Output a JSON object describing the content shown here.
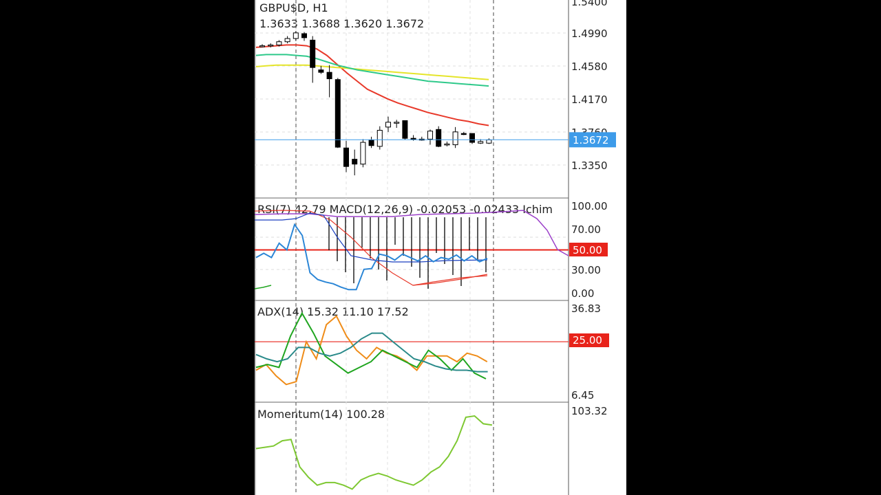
{
  "main": {
    "symbol": "GBPU$D, H1",
    "ohlc": "1.3633 1.3688 1.3620 1.3672",
    "price_axis": [
      "1.5400",
      "1.4990",
      "1.4580",
      "1.4170",
      "1.3760",
      "1.3350"
    ],
    "current_price": "1.3672",
    "current_price_color": "#3d9be9",
    "candles": [
      {
        "o": 1.484,
        "h": 1.486,
        "l": 1.482,
        "c": 1.484
      },
      {
        "o": 1.484,
        "h": 1.487,
        "l": 1.482,
        "c": 1.485
      },
      {
        "o": 1.485,
        "h": 1.491,
        "l": 1.483,
        "c": 1.489
      },
      {
        "o": 1.489,
        "h": 1.496,
        "l": 1.487,
        "c": 1.493
      },
      {
        "o": 1.493,
        "h": 1.502,
        "l": 1.49,
        "c": 1.5
      },
      {
        "o": 1.499,
        "h": 1.501,
        "l": 1.49,
        "c": 1.494
      },
      {
        "o": 1.491,
        "h": 1.496,
        "l": 1.438,
        "c": 1.457
      },
      {
        "o": 1.454,
        "h": 1.459,
        "l": 1.449,
        "c": 1.451
      },
      {
        "o": 1.451,
        "h": 1.46,
        "l": 1.42,
        "c": 1.443
      },
      {
        "o": 1.442,
        "h": 1.444,
        "l": 1.357,
        "c": 1.358
      },
      {
        "o": 1.357,
        "h": 1.366,
        "l": 1.327,
        "c": 1.334
      },
      {
        "o": 1.343,
        "h": 1.355,
        "l": 1.323,
        "c": 1.337
      },
      {
        "o": 1.337,
        "h": 1.368,
        "l": 1.333,
        "c": 1.364
      },
      {
        "o": 1.367,
        "h": 1.371,
        "l": 1.357,
        "c": 1.36
      },
      {
        "o": 1.359,
        "h": 1.384,
        "l": 1.355,
        "c": 1.379
      },
      {
        "o": 1.383,
        "h": 1.396,
        "l": 1.377,
        "c": 1.389
      },
      {
        "o": 1.389,
        "h": 1.392,
        "l": 1.382,
        "c": 1.389
      },
      {
        "o": 1.391,
        "h": 1.391,
        "l": 1.367,
        "c": 1.369
      },
      {
        "o": 1.369,
        "h": 1.373,
        "l": 1.366,
        "c": 1.368
      },
      {
        "o": 1.368,
        "h": 1.371,
        "l": 1.366,
        "c": 1.367
      },
      {
        "o": 1.368,
        "h": 1.38,
        "l": 1.361,
        "c": 1.378
      },
      {
        "o": 1.38,
        "h": 1.384,
        "l": 1.358,
        "c": 1.359
      },
      {
        "o": 1.361,
        "h": 1.365,
        "l": 1.359,
        "c": 1.362
      },
      {
        "o": 1.361,
        "h": 1.383,
        "l": 1.357,
        "c": 1.377
      },
      {
        "o": 1.375,
        "h": 1.377,
        "l": 1.373,
        "c": 1.374
      },
      {
        "o": 1.375,
        "h": 1.375,
        "l": 1.362,
        "c": 1.364
      },
      {
        "o": 1.363,
        "h": 1.368,
        "l": 1.362,
        "c": 1.365
      },
      {
        "o": 1.363,
        "h": 1.369,
        "l": 1.362,
        "c": 1.367
      }
    ],
    "ma_lines": [
      {
        "color": "#e8392a",
        "values": [
          1.482,
          1.483,
          1.484,
          1.485,
          1.485,
          1.484,
          1.48,
          1.472,
          1.461,
          1.45,
          1.44,
          1.43,
          1.424,
          1.418,
          1.413,
          1.409,
          1.405,
          1.401,
          1.398,
          1.395,
          1.392,
          1.39,
          1.387,
          1.385
        ]
      },
      {
        "color": "#e5e52a",
        "values": [
          1.458,
          1.459,
          1.46,
          1.46,
          1.46,
          1.46,
          1.459,
          1.458,
          1.457,
          1.456,
          1.455,
          1.454,
          1.453,
          1.452,
          1.451,
          1.45,
          1.449,
          1.448,
          1.447,
          1.446,
          1.445,
          1.444,
          1.443,
          1.442
        ]
      },
      {
        "color": "#2ec98a",
        "values": [
          1.472,
          1.473,
          1.473,
          1.473,
          1.472,
          1.471,
          1.468,
          1.464,
          1.46,
          1.457,
          1.454,
          1.452,
          1.45,
          1.448,
          1.446,
          1.444,
          1.442,
          1.44,
          1.439,
          1.438,
          1.437,
          1.436,
          1.435,
          1.434
        ]
      }
    ]
  },
  "rsi_panel": {
    "label": "RSI(7) 42.79 MACD(12,26,9) -0.02053 -0.02433 Ichim",
    "axis": [
      "100.00",
      "70.00",
      "50.00",
      "30.00",
      "0.00"
    ],
    "level_color": "#e8231a",
    "rsi": [
      41,
      46,
      41,
      58,
      50,
      80,
      67,
      23,
      15,
      12,
      10,
      6,
      3,
      3,
      27,
      28,
      45,
      43,
      38,
      45,
      41,
      37,
      43,
      36,
      41,
      39,
      44,
      37,
      43,
      36,
      40
    ],
    "rsi_color": "#2b86d6"
  },
  "adx_panel": {
    "label": "ADX(14) 15.32 11.10 17.52",
    "axis_top": "36.83",
    "axis_bottom": "6.45",
    "level": "25.00",
    "level_value": 25.0,
    "adx": [
      20.5,
      19,
      18,
      19,
      23,
      23,
      21,
      20,
      21,
      23,
      26,
      28,
      28,
      25,
      22,
      19,
      18,
      16.5,
      15.5,
      15,
      15,
      14.5,
      14.5
    ],
    "adx_color": "#2a8a8a",
    "plus_di": [
      16,
      17,
      16,
      27,
      35,
      28,
      20,
      17,
      14,
      16,
      18,
      22,
      20,
      18,
      16,
      22,
      19,
      15,
      19,
      14,
      12
    ],
    "plus_di_color": "#1fa51f",
    "minus_di": [
      15,
      17,
      13,
      10,
      11,
      25,
      19,
      31,
      34,
      27,
      22,
      19,
      23,
      21,
      20,
      18,
      15,
      20,
      20,
      20,
      18,
      21,
      20,
      18
    ],
    "minus_di_color": "#ef8c18"
  },
  "momentum_panel": {
    "label": "Momentum(14) 100.28",
    "axis_top": "103.32",
    "values": [
      100.4,
      100.5,
      100.6,
      101,
      101.1,
      99,
      98.2,
      97.6,
      97.8,
      97.8,
      97.6,
      97.3,
      98,
      98.3,
      98.5,
      98.3,
      98.0,
      97.8,
      97.6,
      98,
      98.6,
      99,
      99.8,
      101,
      102.8,
      102.9,
      102.3,
      102.2
    ],
    "color": "#7ec832"
  }
}
